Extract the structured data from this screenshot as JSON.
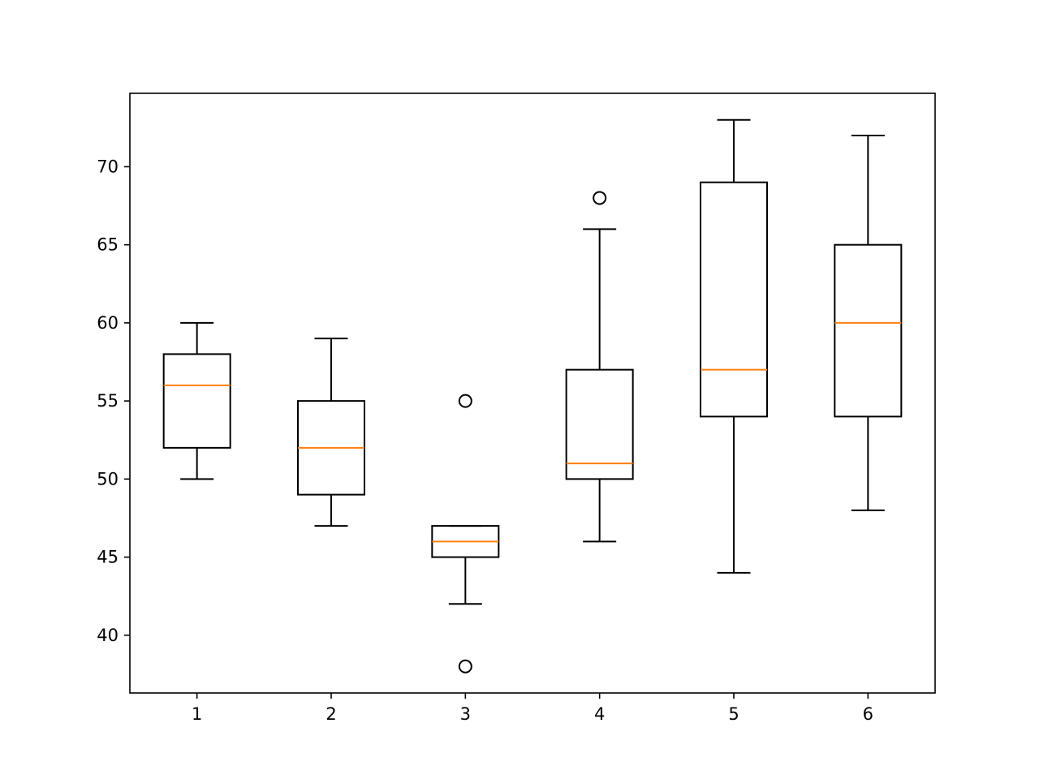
{
  "chart_data": {
    "type": "boxplot",
    "title": "",
    "xlabel": "",
    "ylabel": "",
    "categories": [
      "1",
      "2",
      "3",
      "4",
      "5",
      "6"
    ],
    "ylim": [
      36.3,
      74.7
    ],
    "yticks": [
      40,
      45,
      50,
      55,
      60,
      65,
      70
    ],
    "ytick_labels": [
      "40",
      "45",
      "50",
      "55",
      "60",
      "65",
      "70"
    ],
    "grid": false,
    "legend": "none",
    "colors": {
      "box": "#000000",
      "median": "#ff7f0e",
      "whisker": "#000000",
      "outlier": "#000000"
    },
    "boxes": [
      {
        "label": "1",
        "whislo": 50,
        "q1": 52,
        "med": 56,
        "q3": 58,
        "whishi": 60,
        "fliers": []
      },
      {
        "label": "2",
        "whislo": 47,
        "q1": 49,
        "med": 52,
        "q3": 55,
        "whishi": 59,
        "fliers": []
      },
      {
        "label": "3",
        "whislo": 42,
        "q1": 45,
        "med": 46,
        "q3": 47,
        "whishi": 47,
        "fliers": [
          55,
          38
        ]
      },
      {
        "label": "4",
        "whislo": 46,
        "q1": 50,
        "med": 51,
        "q3": 57,
        "whishi": 66,
        "fliers": [
          68
        ]
      },
      {
        "label": "5",
        "whislo": 44,
        "q1": 54,
        "med": 57,
        "q3": 69,
        "whishi": 73,
        "fliers": []
      },
      {
        "label": "6",
        "whislo": 48,
        "q1": 54,
        "med": 60,
        "q3": 65,
        "whishi": 72,
        "fliers": []
      }
    ]
  }
}
